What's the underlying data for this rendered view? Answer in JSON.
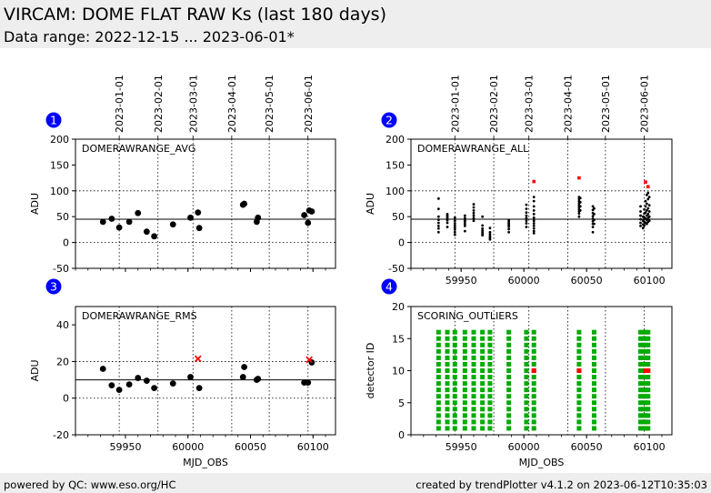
{
  "header": {
    "title": "VIRCAM: DOME FLAT RAW Ks (last 180 days)",
    "subtitle": "Data range: 2022-12-15 ... 2023-06-01*"
  },
  "footer": {
    "left": "powered by QC: www.eso.org/HC",
    "right": "created by trendPlotter v4.1.2 on 2023-06-12T10:35:03"
  },
  "date_axis": {
    "labels": [
      "2023-01-01",
      "2023-02-01",
      "2023-03-01",
      "2023-04-01",
      "2023-05-01",
      "2023-06-01"
    ],
    "mjd": [
      59945,
      59976,
      60004,
      60035,
      60065,
      60096
    ]
  },
  "colors": {
    "normal": "#000000",
    "outlier": "#ff0000",
    "ok": "#00aa00",
    "badge": "#0000ff"
  },
  "chart_data": [
    {
      "id": "avg",
      "number": "1",
      "type": "scatter",
      "label": "DOMERAWRANGE_AVG",
      "ylabel": "ADU",
      "xlabel": "",
      "xlim": [
        59910,
        60118
      ],
      "ylim": [
        -50,
        200
      ],
      "xticks": [
        59950,
        60000,
        60050,
        60100
      ],
      "show_xticklabels": false,
      "yticks": [
        -50,
        0,
        50,
        100,
        150,
        200
      ],
      "dotted_y": [
        0,
        100
      ],
      "ref_line": 45,
      "points": [
        {
          "x": 59932,
          "y": 40
        },
        {
          "x": 59939,
          "y": 46
        },
        {
          "x": 59945,
          "y": 29
        },
        {
          "x": 59953,
          "y": 40
        },
        {
          "x": 59960,
          "y": 57
        },
        {
          "x": 59967,
          "y": 21
        },
        {
          "x": 59973,
          "y": 12
        },
        {
          "x": 59988,
          "y": 35
        },
        {
          "x": 60002,
          "y": 48
        },
        {
          "x": 60008,
          "y": 58
        },
        {
          "x": 60009,
          "y": 28
        },
        {
          "x": 60044,
          "y": 73
        },
        {
          "x": 60045,
          "y": 75
        },
        {
          "x": 60055,
          "y": 40
        },
        {
          "x": 60056,
          "y": 48
        },
        {
          "x": 60093,
          "y": 53
        },
        {
          "x": 60096,
          "y": 38
        },
        {
          "x": 60097,
          "y": 62
        },
        {
          "x": 60099,
          "y": 60
        }
      ],
      "outliers": []
    },
    {
      "id": "all",
      "number": "2",
      "type": "scatter",
      "label": "DOMERAWRANGE_ALL",
      "ylabel": "ADU",
      "xlabel": "",
      "xlim": [
        59910,
        60118
      ],
      "ylim": [
        -50,
        200
      ],
      "xticks": [
        59950,
        60000,
        60050,
        60100
      ],
      "show_xticklabels": true,
      "yticks": [
        -50,
        0,
        50,
        100,
        150,
        200
      ],
      "dotted_y": [
        0,
        100
      ],
      "ref_line": 45,
      "points": [
        {
          "x": 59932,
          "y": 85
        },
        {
          "x": 59932,
          "y": 65
        },
        {
          "x": 59932,
          "y": 50
        },
        {
          "x": 59932,
          "y": 44
        },
        {
          "x": 59932,
          "y": 38
        },
        {
          "x": 59932,
          "y": 32
        },
        {
          "x": 59932,
          "y": 27
        },
        {
          "x": 59932,
          "y": 20
        },
        {
          "x": 59939,
          "y": 55
        },
        {
          "x": 59939,
          "y": 52
        },
        {
          "x": 59939,
          "y": 49
        },
        {
          "x": 59939,
          "y": 46
        },
        {
          "x": 59939,
          "y": 43
        },
        {
          "x": 59939,
          "y": 38
        },
        {
          "x": 59939,
          "y": 30
        },
        {
          "x": 59945,
          "y": 48
        },
        {
          "x": 59945,
          "y": 42
        },
        {
          "x": 59945,
          "y": 37
        },
        {
          "x": 59945,
          "y": 33
        },
        {
          "x": 59945,
          "y": 29
        },
        {
          "x": 59945,
          "y": 25
        },
        {
          "x": 59945,
          "y": 20
        },
        {
          "x": 59945,
          "y": 15
        },
        {
          "x": 59953,
          "y": 52
        },
        {
          "x": 59953,
          "y": 47
        },
        {
          "x": 59953,
          "y": 43
        },
        {
          "x": 59953,
          "y": 40
        },
        {
          "x": 59953,
          "y": 36
        },
        {
          "x": 59953,
          "y": 32
        },
        {
          "x": 59953,
          "y": 22
        },
        {
          "x": 59960,
          "y": 74
        },
        {
          "x": 59960,
          "y": 68
        },
        {
          "x": 59960,
          "y": 62
        },
        {
          "x": 59960,
          "y": 57
        },
        {
          "x": 59960,
          "y": 52
        },
        {
          "x": 59960,
          "y": 47
        },
        {
          "x": 59960,
          "y": 42
        },
        {
          "x": 59967,
          "y": 50
        },
        {
          "x": 59967,
          "y": 33
        },
        {
          "x": 59967,
          "y": 27
        },
        {
          "x": 59967,
          "y": 23
        },
        {
          "x": 59967,
          "y": 20
        },
        {
          "x": 59967,
          "y": 17
        },
        {
          "x": 59967,
          "y": 14
        },
        {
          "x": 59973,
          "y": 28
        },
        {
          "x": 59973,
          "y": 20
        },
        {
          "x": 59973,
          "y": 16
        },
        {
          "x": 59973,
          "y": 12
        },
        {
          "x": 59973,
          "y": 9
        },
        {
          "x": 59973,
          "y": 6
        },
        {
          "x": 59988,
          "y": 43
        },
        {
          "x": 59988,
          "y": 40
        },
        {
          "x": 59988,
          "y": 37
        },
        {
          "x": 59988,
          "y": 34
        },
        {
          "x": 59988,
          "y": 31
        },
        {
          "x": 59988,
          "y": 26
        },
        {
          "x": 59988,
          "y": 20
        },
        {
          "x": 60002,
          "y": 73
        },
        {
          "x": 60002,
          "y": 65
        },
        {
          "x": 60002,
          "y": 58
        },
        {
          "x": 60002,
          "y": 52
        },
        {
          "x": 60002,
          "y": 47
        },
        {
          "x": 60002,
          "y": 42
        },
        {
          "x": 60002,
          "y": 37
        },
        {
          "x": 60002,
          "y": 30
        },
        {
          "x": 60008,
          "y": 88
        },
        {
          "x": 60008,
          "y": 80
        },
        {
          "x": 60008,
          "y": 70
        },
        {
          "x": 60008,
          "y": 62
        },
        {
          "x": 60008,
          "y": 55
        },
        {
          "x": 60008,
          "y": 48
        },
        {
          "x": 60008,
          "y": 42
        },
        {
          "x": 60008,
          "y": 37
        },
        {
          "x": 60008,
          "y": 32
        },
        {
          "x": 60008,
          "y": 27
        },
        {
          "x": 60008,
          "y": 22
        },
        {
          "x": 60008,
          "y": 18
        },
        {
          "x": 60044,
          "y": 88
        },
        {
          "x": 60044,
          "y": 84
        },
        {
          "x": 60044,
          "y": 80
        },
        {
          "x": 60044,
          "y": 76
        },
        {
          "x": 60044,
          "y": 72
        },
        {
          "x": 60044,
          "y": 68
        },
        {
          "x": 60044,
          "y": 64
        },
        {
          "x": 60044,
          "y": 60
        },
        {
          "x": 60044,
          "y": 56
        },
        {
          "x": 60044,
          "y": 50
        },
        {
          "x": 60045,
          "y": 86
        },
        {
          "x": 60045,
          "y": 78
        },
        {
          "x": 60045,
          "y": 70
        },
        {
          "x": 60045,
          "y": 62
        },
        {
          "x": 60055,
          "y": 70
        },
        {
          "x": 60055,
          "y": 63
        },
        {
          "x": 60055,
          "y": 57
        },
        {
          "x": 60055,
          "y": 51
        },
        {
          "x": 60055,
          "y": 46
        },
        {
          "x": 60055,
          "y": 41
        },
        {
          "x": 60055,
          "y": 36
        },
        {
          "x": 60055,
          "y": 30
        },
        {
          "x": 60055,
          "y": 20
        },
        {
          "x": 60056,
          "y": 66
        },
        {
          "x": 60056,
          "y": 55
        },
        {
          "x": 60056,
          "y": 44
        },
        {
          "x": 60056,
          "y": 36
        },
        {
          "x": 60093,
          "y": 70
        },
        {
          "x": 60093,
          "y": 60
        },
        {
          "x": 60093,
          "y": 52
        },
        {
          "x": 60093,
          "y": 45
        },
        {
          "x": 60093,
          "y": 38
        },
        {
          "x": 60093,
          "y": 32
        },
        {
          "x": 60095,
          "y": 50
        },
        {
          "x": 60095,
          "y": 42
        },
        {
          "x": 60095,
          "y": 35
        },
        {
          "x": 60095,
          "y": 28
        },
        {
          "x": 60096,
          "y": 64
        },
        {
          "x": 60096,
          "y": 56
        },
        {
          "x": 60096,
          "y": 48
        },
        {
          "x": 60096,
          "y": 40
        },
        {
          "x": 60096,
          "y": 33
        },
        {
          "x": 60097,
          "y": 80
        },
        {
          "x": 60097,
          "y": 70
        },
        {
          "x": 60097,
          "y": 58
        },
        {
          "x": 60097,
          "y": 46
        },
        {
          "x": 60097,
          "y": 38
        },
        {
          "x": 60098,
          "y": 92
        },
        {
          "x": 60098,
          "y": 75
        },
        {
          "x": 60098,
          "y": 62
        },
        {
          "x": 60098,
          "y": 52
        },
        {
          "x": 60098,
          "y": 44
        },
        {
          "x": 60098,
          "y": 36
        },
        {
          "x": 60099,
          "y": 96
        },
        {
          "x": 60099,
          "y": 84
        },
        {
          "x": 60099,
          "y": 66
        },
        {
          "x": 60099,
          "y": 55
        },
        {
          "x": 60099,
          "y": 47
        },
        {
          "x": 60099,
          "y": 40
        },
        {
          "x": 60100,
          "y": 88
        },
        {
          "x": 60100,
          "y": 72
        },
        {
          "x": 60100,
          "y": 60
        },
        {
          "x": 60100,
          "y": 50
        },
        {
          "x": 60100,
          "y": 42
        }
      ],
      "outliers": [
        {
          "x": 60008,
          "y": 118
        },
        {
          "x": 60044,
          "y": 125
        },
        {
          "x": 60097,
          "y": 117
        },
        {
          "x": 60099,
          "y": 108
        }
      ]
    },
    {
      "id": "rms",
      "number": "3",
      "type": "scatter",
      "label": "DOMERAWRANGE_RMS",
      "ylabel": "ADU",
      "xlabel": "MJD_OBS",
      "xlim": [
        59910,
        60118
      ],
      "ylim": [
        -20,
        50
      ],
      "xticks": [
        59950,
        60000,
        60050,
        60100
      ],
      "show_xticklabels": true,
      "yticks": [
        -20,
        0,
        20,
        40
      ],
      "dotted_y": [
        0,
        20
      ],
      "ref_line": 10,
      "points": [
        {
          "x": 59932,
          "y": 16
        },
        {
          "x": 59939,
          "y": 7
        },
        {
          "x": 59945,
          "y": 4.5
        },
        {
          "x": 59953,
          "y": 7.5
        },
        {
          "x": 59960,
          "y": 11
        },
        {
          "x": 59967,
          "y": 9.5
        },
        {
          "x": 59973,
          "y": 5.5
        },
        {
          "x": 59988,
          "y": 8
        },
        {
          "x": 60002,
          "y": 11.5
        },
        {
          "x": 60009,
          "y": 5.5
        },
        {
          "x": 60044,
          "y": 11.5
        },
        {
          "x": 60045,
          "y": 17
        },
        {
          "x": 60055,
          "y": 10
        },
        {
          "x": 60056,
          "y": 10.5
        },
        {
          "x": 60093,
          "y": 8.5
        },
        {
          "x": 60096,
          "y": 8.5
        },
        {
          "x": 60099,
          "y": 19.5
        }
      ],
      "outliers": [
        {
          "x": 60008,
          "y": 21.5
        },
        {
          "x": 60097,
          "y": 21
        }
      ]
    },
    {
      "id": "scoring",
      "number": "4",
      "type": "scatter",
      "label": "SCORING_OUTLIERS",
      "ylabel": "detector ID",
      "xlabel": "MJD_OBS",
      "xlim": [
        59910,
        60118
      ],
      "ylim": [
        0,
        20
      ],
      "xticks": [
        59950,
        60000,
        60050,
        60100
      ],
      "show_xticklabels": true,
      "yticks": [
        0,
        5,
        10,
        15,
        20
      ],
      "dotted_y": [],
      "ref_line": null,
      "detectors": 16,
      "ok_columns": [
        59932,
        59939,
        59945,
        59953,
        59960,
        59967,
        59973,
        59988,
        60002,
        60008,
        60044,
        60056,
        60093,
        60095,
        60097,
        60099
      ],
      "outliers": [
        {
          "x": 60008,
          "y": 10
        },
        {
          "x": 60044,
          "y": 10
        },
        {
          "x": 60097,
          "y": 10
        },
        {
          "x": 60099,
          "y": 10
        }
      ]
    }
  ]
}
